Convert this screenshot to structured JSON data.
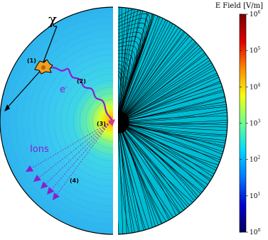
{
  "colorbar": {
    "title": "E Field [V/m]",
    "ticks": [
      {
        "base": "10",
        "exp": "0"
      },
      {
        "base": "10",
        "exp": "1"
      },
      {
        "base": "10",
        "exp": "2"
      },
      {
        "base": "10",
        "exp": "3"
      },
      {
        "base": "10",
        "exp": "4"
      },
      {
        "base": "10",
        "exp": "5"
      },
      {
        "base": "10",
        "exp": "6"
      }
    ],
    "colors": [
      "#00005a",
      "#0000d0",
      "#0077ff",
      "#00d8ff",
      "#6cff90",
      "#f4ff10",
      "#ff8a00",
      "#e00000",
      "#7a0000"
    ]
  },
  "labels": {
    "chi": "χ",
    "step1": "(1)",
    "step2": "(2)",
    "step3": "(3)",
    "step4": "(4)",
    "electron": "e",
    "electron_sup": "-",
    "ions": "Ions"
  },
  "colors": {
    "field_background": "#36c4f0",
    "electron_path": "#8a1fd0",
    "ions": "#8a1fd0",
    "field_lines": "#000000",
    "electrode": "#e0338a"
  }
}
